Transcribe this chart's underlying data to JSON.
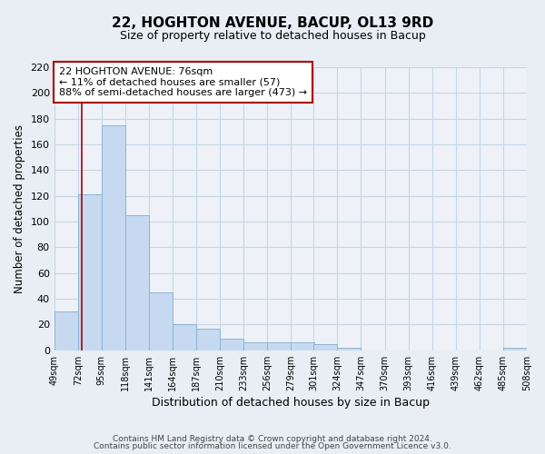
{
  "title": "22, HOGHTON AVENUE, BACUP, OL13 9RD",
  "subtitle": "Size of property relative to detached houses in Bacup",
  "xlabel": "Distribution of detached houses by size in Bacup",
  "ylabel": "Number of detached properties",
  "bar_color": "#c6d9f0",
  "bar_edge_color": "#8ab4d4",
  "grid_color": "#c5d5e5",
  "annotation_box_color": "#aa0000",
  "vline_color": "#aa0000",
  "bins": [
    49,
    72,
    95,
    118,
    141,
    164,
    187,
    210,
    233,
    256,
    279,
    301,
    324,
    347,
    370,
    393,
    416,
    439,
    462,
    485,
    508
  ],
  "counts": [
    30,
    121,
    175,
    105,
    45,
    20,
    17,
    9,
    6,
    6,
    6,
    5,
    2,
    0,
    0,
    0,
    0,
    0,
    0,
    2
  ],
  "vline_x": 76,
  "ylim": [
    0,
    220
  ],
  "yticks": [
    0,
    20,
    40,
    60,
    80,
    100,
    120,
    140,
    160,
    180,
    200,
    220
  ],
  "annotation_title": "22 HOGHTON AVENUE: 76sqm",
  "annotation_line1": "← 11% of detached houses are smaller (57)",
  "annotation_line2": "88% of semi-detached houses are larger (473) →",
  "footer1": "Contains HM Land Registry data © Crown copyright and database right 2024.",
  "footer2": "Contains public sector information licensed under the Open Government Licence v3.0.",
  "background_color": "#e8eef4",
  "plot_bg_color": "#eef2f8",
  "tick_labels": [
    "49sqm",
    "72sqm",
    "95sqm",
    "118sqm",
    "141sqm",
    "164sqm",
    "187sqm",
    "210sqm",
    "233sqm",
    "256sqm",
    "279sqm",
    "301sqm",
    "324sqm",
    "347sqm",
    "370sqm",
    "393sqm",
    "416sqm",
    "439sqm",
    "462sqm",
    "485sqm",
    "508sqm"
  ]
}
